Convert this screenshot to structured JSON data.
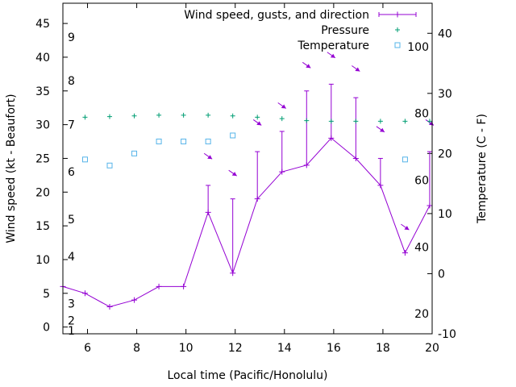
{
  "chart_data": {
    "type": "line",
    "xlabel": "Local time (Pacific/Honolulu)",
    "ylabel": "Wind speed (kt - Beaufort)",
    "y2label": "Temperature (C - F)",
    "xlim": [
      5,
      20
    ],
    "ylim": [
      -1,
      48
    ],
    "y2lim": [
      -10,
      45
    ],
    "x_ticks": [
      "6",
      "8",
      "10",
      "12",
      "14",
      "16",
      "18",
      "20"
    ],
    "y_ticks": [
      "0",
      "5",
      "10",
      "15",
      "20",
      "25",
      "30",
      "35",
      "40",
      "45"
    ],
    "y2_ticks": [
      "-10",
      "0",
      "10",
      "20",
      "30",
      "40"
    ],
    "beaufort_labels": [
      "1",
      "2",
      "3",
      "4",
      "5",
      "6",
      "7",
      "8",
      "9"
    ],
    "fahrenheit_labels": [
      "20",
      "40",
      "60",
      "80",
      "100"
    ],
    "grid": false,
    "legend": "top-right",
    "series": [
      {
        "name": "Wind speed, gusts, and direction",
        "color": "#9400d3",
        "x": [
          5,
          5.9,
          6.9,
          7.9,
          8.9,
          9.9,
          10.9,
          11.9,
          12.9,
          13.9,
          14.9,
          15.9,
          16.9,
          17.9,
          18.9,
          19.9
        ],
        "values": [
          6,
          5,
          3,
          4,
          6,
          6,
          17,
          8,
          19,
          23,
          24,
          28,
          25,
          21,
          11,
          18
        ],
        "gusts": [
          null,
          null,
          null,
          null,
          null,
          null,
          21,
          19,
          26,
          29,
          35,
          36,
          34,
          25,
          null,
          26
        ],
        "direction_x": [
          10.9,
          11.9,
          12.9,
          13.9,
          14.9,
          15.9,
          16.9,
          17.9,
          18.9,
          19.9
        ],
        "direction_y": [
          25.5,
          23,
          30.5,
          33,
          39,
          40.5,
          38.5,
          29.5,
          15,
          30.5
        ]
      },
      {
        "name": "Pressure",
        "color": "#009e73",
        "x": [
          5.9,
          6.9,
          7.9,
          8.9,
          9.9,
          10.9,
          11.9,
          12.9,
          13.9,
          14.9,
          15.9,
          16.9,
          17.9,
          18.9,
          19.9
        ],
        "values": [
          31.1,
          31.2,
          31.3,
          31.4,
          31.4,
          31.4,
          31.3,
          31.1,
          30.9,
          30.6,
          30.5,
          30.5,
          30.5,
          30.5,
          30.5
        ]
      },
      {
        "name": "Temperature",
        "color": "#56b4e9",
        "x": [
          5.9,
          6.9,
          7.9,
          8.9,
          9.9,
          10.9,
          11.9,
          18.9
        ],
        "values": [
          19,
          18,
          20,
          22,
          22,
          22,
          23,
          19
        ]
      }
    ]
  }
}
